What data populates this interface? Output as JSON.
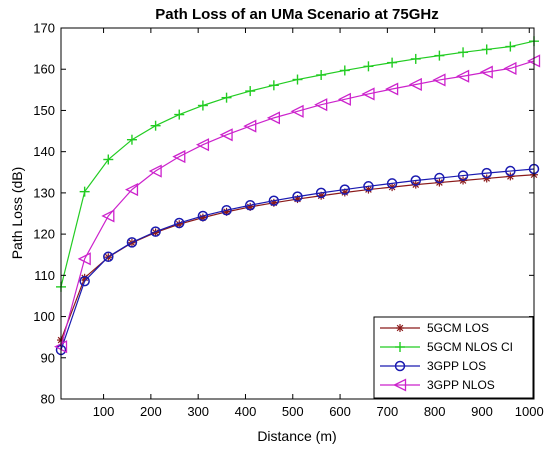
{
  "chart_data": {
    "type": "line",
    "title": "Path Loss of an UMa Scenario at 75GHz",
    "xlabel": "Distance (m)",
    "ylabel": "Path Loss (dB)",
    "xlim": [
      10,
      1010
    ],
    "ylim": [
      80,
      170
    ],
    "xticks": [
      100,
      200,
      300,
      400,
      500,
      600,
      700,
      800,
      900,
      1000
    ],
    "yticks": [
      80,
      90,
      100,
      110,
      120,
      130,
      140,
      150,
      160,
      170
    ],
    "grid": false,
    "legend_position": "bottom-right",
    "x": [
      10,
      60,
      110,
      160,
      210,
      260,
      310,
      360,
      410,
      460,
      510,
      560,
      610,
      660,
      710,
      760,
      810,
      860,
      910,
      960,
      1010
    ],
    "series": [
      {
        "name": "5GCM LOS",
        "color": "#8B1A1A",
        "marker": "asterisk",
        "values": [
          94.3,
          109.4,
          114.4,
          117.9,
          120.4,
          122.4,
          124.0,
          125.4,
          126.6,
          127.6,
          128.5,
          129.3,
          130.1,
          130.8,
          131.4,
          132.0,
          132.5,
          133.0,
          133.5,
          134.0,
          134.4
        ]
      },
      {
        "name": "5GCM NLOS CI",
        "color": "#22CC22",
        "marker": "plus",
        "values": [
          107.2,
          130.3,
          138.1,
          142.9,
          146.3,
          149.0,
          151.2,
          153.1,
          154.7,
          156.1,
          157.5,
          158.6,
          159.7,
          160.7,
          161.6,
          162.5,
          163.3,
          164.1,
          164.8,
          165.5,
          166.8
        ]
      },
      {
        "name": "3GPP LOS",
        "color": "#1A1AB0",
        "marker": "circle",
        "values": [
          91.9,
          108.6,
          114.5,
          118.0,
          120.6,
          122.7,
          124.4,
          125.8,
          127.0,
          128.1,
          129.1,
          130.0,
          130.8,
          131.6,
          132.3,
          133.0,
          133.6,
          134.2,
          134.8,
          135.3,
          135.8
        ]
      },
      {
        "name": "3GPP NLOS",
        "color": "#CC22CC",
        "marker": "triangle-left",
        "values": [
          92.7,
          114.0,
          124.4,
          130.8,
          135.3,
          138.8,
          141.7,
          144.1,
          146.2,
          148.2,
          149.8,
          151.4,
          152.7,
          154.0,
          155.2,
          156.3,
          157.4,
          158.3,
          159.3,
          160.2,
          162.0
        ]
      }
    ]
  }
}
